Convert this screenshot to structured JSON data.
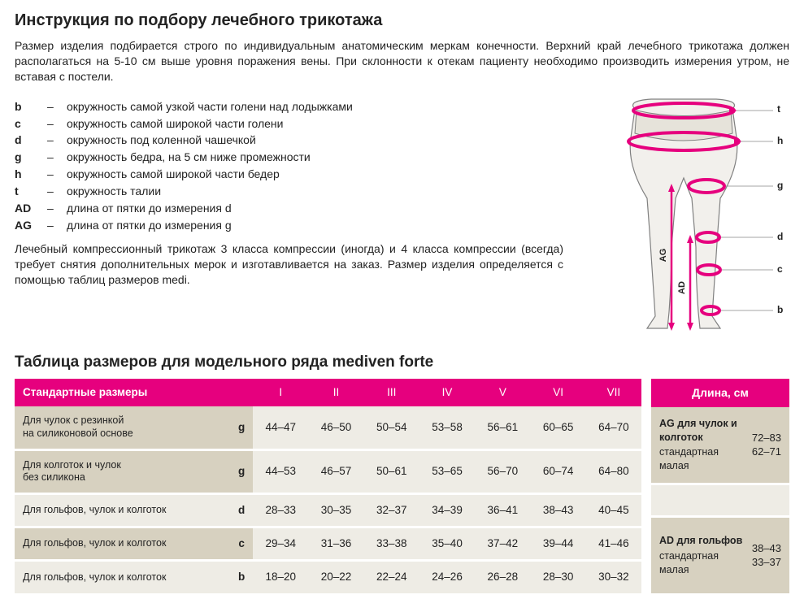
{
  "title": "Инструкция по подбору лечебного трикотажа",
  "intro": "Размер изделия подбирается строго по индивидуальным анатомическим меркам конечности. Верхний край лечебного трикотажа должен располагаться на 5-10 см выше уровня поражения вены. При склонности к отекам пациенту необходимо производить измерения утром, не вставая с постели.",
  "definitions": [
    {
      "key": "b",
      "text": "окружность самой узкой части голени над лодыжками"
    },
    {
      "key": "c",
      "text": "окружность самой широкой части голени"
    },
    {
      "key": "d",
      "text": "окружность под коленной чашечкой"
    },
    {
      "key": "g",
      "text": "окружность бедра, на 5 см ниже промежности"
    },
    {
      "key": "h",
      "text": "окружность самой широкой части бедер"
    },
    {
      "key": "t",
      "text": "окружность талии"
    },
    {
      "key": "AD",
      "text": "длина от пятки до измерения d"
    },
    {
      "key": "AG",
      "text": "длина от пятки до измерения g"
    }
  ],
  "note": "Лечебный компрессионный трикотаж 3 класса компрессии (иногда) и 4 класса компрессии (всегда) требует снятия дополнительных мерок и изготавливается на заказ. Размер изделия определяется с помощью таблиц размеров medi.",
  "table_title": "Таблица размеров для модельного ряда mediven forte",
  "columns_header": "Стандартные размеры",
  "columns": [
    "I",
    "II",
    "III",
    "IV",
    "V",
    "VI",
    "VII"
  ],
  "rows": [
    {
      "label": "Для чулок с резинкой\nна силиконовой основе",
      "key": "g",
      "shade": "a",
      "values": [
        "44–47",
        "46–50",
        "50–54",
        "53–58",
        "56–61",
        "60–65",
        "64–70"
      ]
    },
    {
      "label": "Для колготок и чулок\nбез силикона",
      "key": "g",
      "shade": "a",
      "values": [
        "44–53",
        "46–57",
        "50–61",
        "53–65",
        "56–70",
        "60–74",
        "64–80"
      ]
    },
    {
      "label": "Для гольфов, чулок и колготок",
      "key": "d",
      "shade": "b",
      "values": [
        "28–33",
        "30–35",
        "32–37",
        "34–39",
        "36–41",
        "38–43",
        "40–45"
      ]
    },
    {
      "label": "Для гольфов, чулок и колготок",
      "key": "c",
      "shade": "a",
      "values": [
        "29–34",
        "31–36",
        "33–38",
        "35–40",
        "37–42",
        "39–44",
        "41–46"
      ]
    },
    {
      "label": "Для гольфов, чулок и колготок",
      "key": "b",
      "shade": "b",
      "values": [
        "18–20",
        "20–22",
        "22–24",
        "24–26",
        "26–28",
        "28–30",
        "30–32"
      ]
    }
  ],
  "side_header": "Длина, см",
  "side_blocks": [
    {
      "title": "AG для чулок и колготок",
      "sub1": "стандартная",
      "sub2": "малая",
      "val1": "72–83",
      "val2": "62–71",
      "span": 2
    },
    {
      "title": "AD для гольфов",
      "sub1": "стандартная",
      "sub2": "малая",
      "val1": "38–43",
      "val2": "33–37",
      "span": 2
    }
  ],
  "diagram": {
    "labels": [
      "t",
      "h",
      "g",
      "d",
      "c",
      "b"
    ],
    "vertical_labels": [
      "AG",
      "AD"
    ],
    "ring_color": "#e6007e",
    "outline_color": "#808080",
    "fill_color": "#f2f0ec"
  }
}
